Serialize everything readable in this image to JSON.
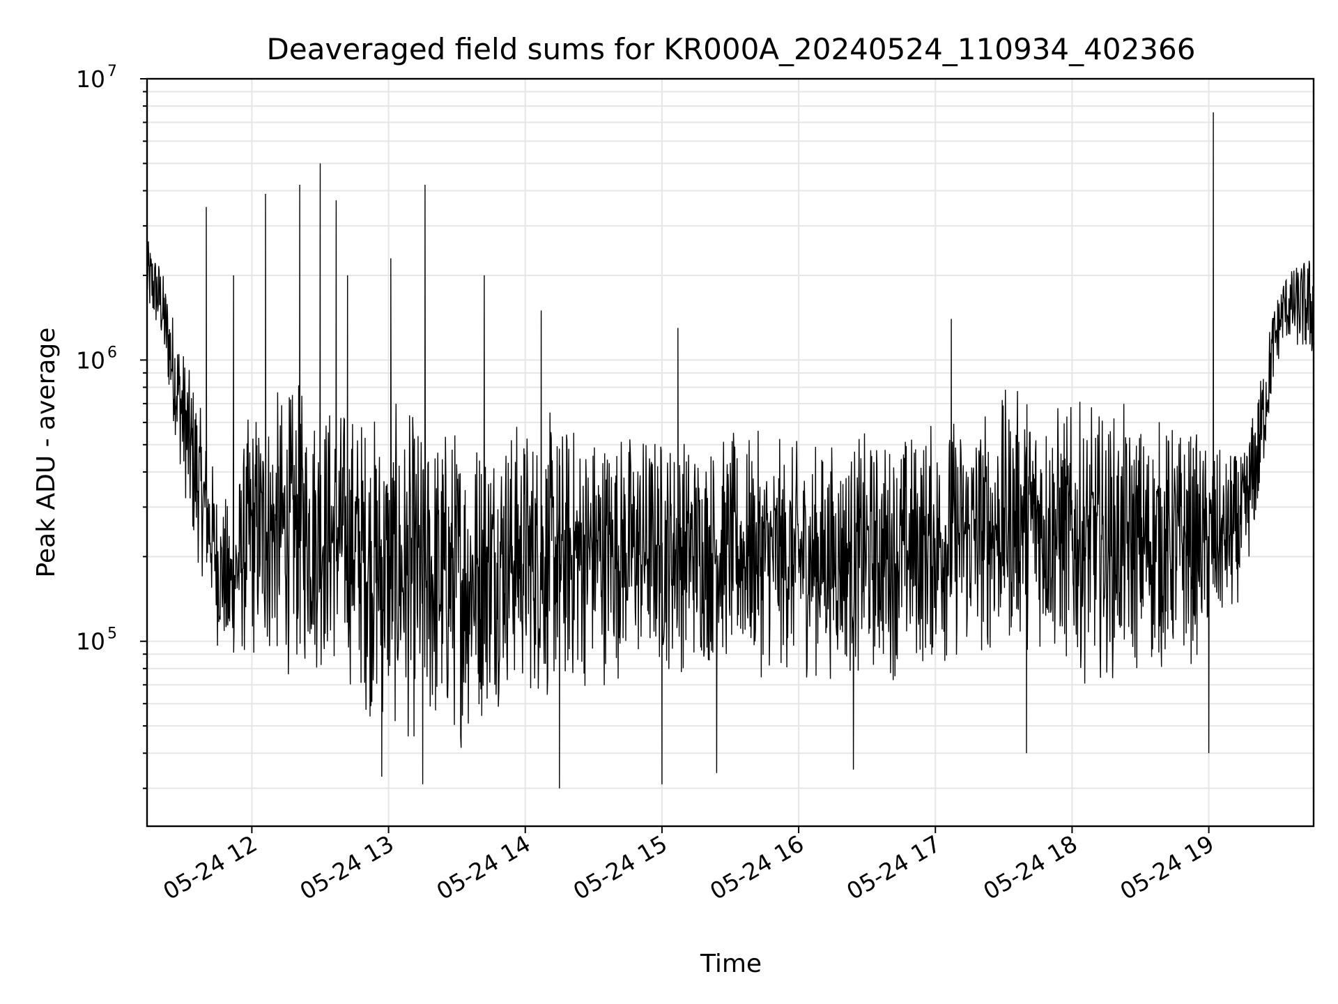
{
  "chart_data": {
    "type": "line",
    "title": "Deaveraged field sums for KR000A_20240524_110934_402366",
    "xlabel": "Time",
    "ylabel": "Peak ADU - average",
    "yscale": "log",
    "ylim": [
      22000,
      10000000
    ],
    "xlim": [
      "2024-05-24T11:14:00",
      "2024-05-24T19:46:00"
    ],
    "grid": true,
    "line_color": "#000000",
    "grid_color": "#e5e5e5",
    "x_ticks": [
      {
        "value": "2024-05-24T12:00:00",
        "label": "05-24 12"
      },
      {
        "value": "2024-05-24T13:00:00",
        "label": "05-24 13"
      },
      {
        "value": "2024-05-24T14:00:00",
        "label": "05-24 14"
      },
      {
        "value": "2024-05-24T15:00:00",
        "label": "05-24 15"
      },
      {
        "value": "2024-05-24T16:00:00",
        "label": "05-24 16"
      },
      {
        "value": "2024-05-24T17:00:00",
        "label": "05-24 17"
      },
      {
        "value": "2024-05-24T18:00:00",
        "label": "05-24 18"
      },
      {
        "value": "2024-05-24T19:00:00",
        "label": "05-24 19"
      }
    ],
    "y_ticks": [
      {
        "value": 100000,
        "base": "10",
        "exp": "5"
      },
      {
        "value": 1000000,
        "base": "10",
        "exp": "6"
      },
      {
        "value": 10000000,
        "base": "10",
        "exp": "7"
      }
    ],
    "series": [
      {
        "band": [
          {
            "x": "2024-05-24T11:14:00",
            "low": 1500000,
            "high": 2700000
          },
          {
            "x": "2024-05-24T11:20:00",
            "low": 1200000,
            "high": 2200000
          },
          {
            "x": "2024-05-24T11:27:00",
            "low": 500000,
            "high": 1300000
          },
          {
            "x": "2024-05-24T11:33:00",
            "low": 250000,
            "high": 900000
          },
          {
            "x": "2024-05-24T11:40:00",
            "low": 140000,
            "high": 600000
          },
          {
            "x": "2024-05-24T11:45:00",
            "low": 90000,
            "high": 400000
          },
          {
            "x": "2024-05-24T11:50:00",
            "low": 80000,
            "high": 300000
          },
          {
            "x": "2024-05-24T12:00:00",
            "low": 75000,
            "high": 800000
          },
          {
            "x": "2024-05-24T12:20:00",
            "low": 70000,
            "high": 900000
          },
          {
            "x": "2024-05-24T12:40:00",
            "low": 70000,
            "high": 800000
          },
          {
            "x": "2024-05-24T12:55:00",
            "low": 45000,
            "high": 750000
          },
          {
            "x": "2024-05-24T13:15:00",
            "low": 38000,
            "high": 720000
          },
          {
            "x": "2024-05-24T13:35:00",
            "low": 40000,
            "high": 700000
          },
          {
            "x": "2024-05-24T13:50:00",
            "low": 60000,
            "high": 700000
          },
          {
            "x": "2024-05-24T14:10:00",
            "low": 55000,
            "high": 700000
          },
          {
            "x": "2024-05-24T14:40:00",
            "low": 70000,
            "high": 650000
          },
          {
            "x": "2024-05-24T15:20:00",
            "low": 75000,
            "high": 600000
          },
          {
            "x": "2024-05-24T16:00:00",
            "low": 70000,
            "high": 550000
          },
          {
            "x": "2024-05-24T16:40:00",
            "low": 70000,
            "high": 600000
          },
          {
            "x": "2024-05-24T17:20:00",
            "low": 80000,
            "high": 750000
          },
          {
            "x": "2024-05-24T17:40:00",
            "low": 90000,
            "high": 900000
          },
          {
            "x": "2024-05-24T18:00:00",
            "low": 70000,
            "high": 750000
          },
          {
            "x": "2024-05-24T18:30:00",
            "low": 70000,
            "high": 700000
          },
          {
            "x": "2024-05-24T18:50:00",
            "low": 75000,
            "high": 650000
          },
          {
            "x": "2024-05-24T19:05:00",
            "low": 100000,
            "high": 500000
          },
          {
            "x": "2024-05-24T19:15:00",
            "low": 150000,
            "high": 450000
          },
          {
            "x": "2024-05-24T19:22:00",
            "low": 300000,
            "high": 800000
          },
          {
            "x": "2024-05-24T19:28:00",
            "low": 800000,
            "high": 1500000
          },
          {
            "x": "2024-05-24T19:33:00",
            "low": 1200000,
            "high": 2000000
          },
          {
            "x": "2024-05-24T19:46:00",
            "low": 1000000,
            "high": 2400000
          }
        ],
        "spikes": [
          {
            "x": "2024-05-24T11:40:00",
            "y": 3500000
          },
          {
            "x": "2024-05-24T11:52:00",
            "y": 2000000
          },
          {
            "x": "2024-05-24T12:06:00",
            "y": 3900000
          },
          {
            "x": "2024-05-24T12:21:00",
            "y": 4200000
          },
          {
            "x": "2024-05-24T12:30:00",
            "y": 5000000
          },
          {
            "x": "2024-05-24T12:37:00",
            "y": 3700000
          },
          {
            "x": "2024-05-24T12:42:00",
            "y": 2000000
          },
          {
            "x": "2024-05-24T13:01:00",
            "y": 2300000
          },
          {
            "x": "2024-05-24T13:16:00",
            "y": 4200000
          },
          {
            "x": "2024-05-24T13:42:00",
            "y": 2000000
          },
          {
            "x": "2024-05-24T14:07:00",
            "y": 1500000
          },
          {
            "x": "2024-05-24T15:07:00",
            "y": 1300000
          },
          {
            "x": "2024-05-24T17:07:00",
            "y": 1400000
          },
          {
            "x": "2024-05-24T19:02:00",
            "y": 7600000
          }
        ],
        "dips": [
          {
            "x": "2024-05-24T12:57:00",
            "y": 33000
          },
          {
            "x": "2024-05-24T13:15:00",
            "y": 31000
          },
          {
            "x": "2024-05-24T14:15:00",
            "y": 30000
          },
          {
            "x": "2024-05-24T15:00:00",
            "y": 31000
          },
          {
            "x": "2024-05-24T15:24:00",
            "y": 34000
          },
          {
            "x": "2024-05-24T16:24:00",
            "y": 35000
          },
          {
            "x": "2024-05-24T17:40:00",
            "y": 40000
          },
          {
            "x": "2024-05-24T19:00:00",
            "y": 40000
          }
        ]
      }
    ]
  }
}
